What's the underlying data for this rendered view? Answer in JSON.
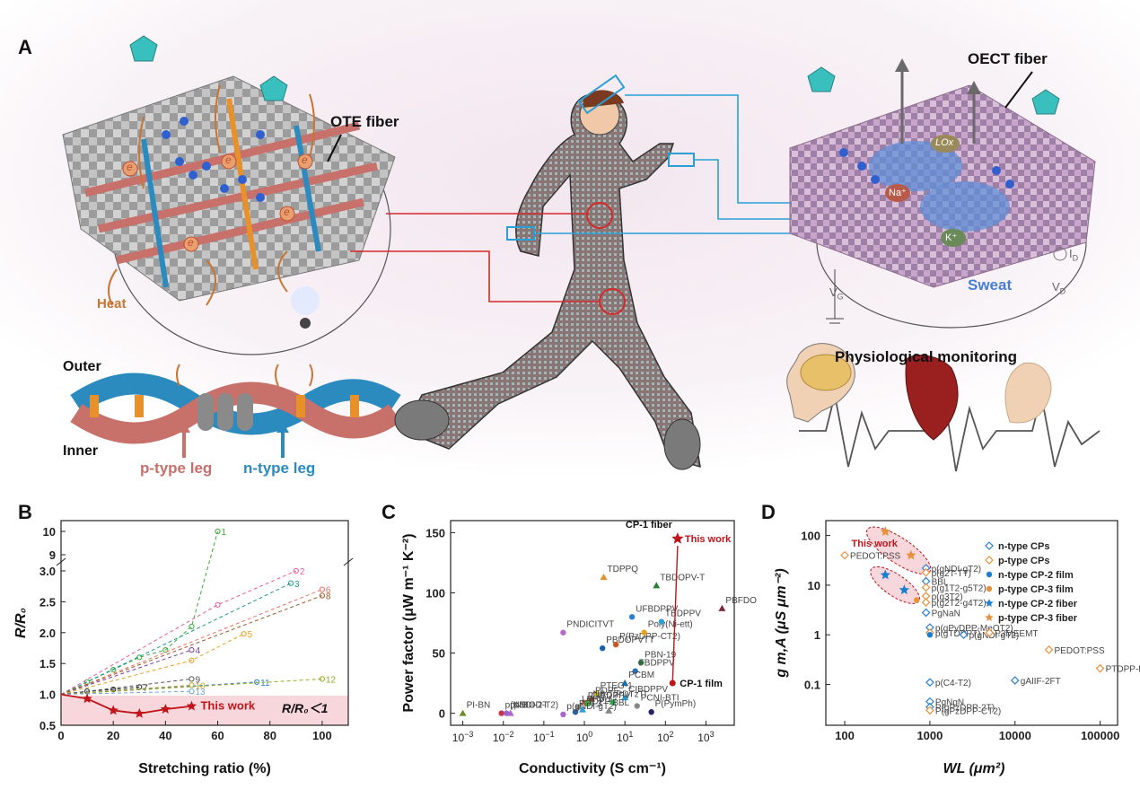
{
  "panels": {
    "a": "A",
    "b": "B",
    "c": "C",
    "d": "D"
  },
  "panel_a": {
    "ote_fiber": "OTE fiber",
    "oect_fiber": "OECT fiber",
    "heat": "Heat",
    "outer": "Outer",
    "inner": "Inner",
    "p_leg": "p-type leg",
    "n_leg": "n-type leg",
    "physio": "Physiological monitoring",
    "sweat": "Sweat",
    "lox": "LOx",
    "na": "Na⁺",
    "k": "K⁺",
    "e": "e",
    "id": "I",
    "id_sub": "D",
    "vg": "V",
    "vg_sub": "G",
    "vd": "V",
    "vd_sub": "D",
    "colors": {
      "p_leg": "#c8706a",
      "n_leg": "#2b8bbf",
      "heat": "#c87533",
      "blue_line": "#2a9fd6",
      "red_line": "#d42a2a"
    }
  },
  "chart_data": [
    {
      "type": "line",
      "panel": "B",
      "xlabel": "Stretching ratio (%)",
      "ylabel": "R/R₀",
      "xlim": [
        0,
        110
      ],
      "x_ticks": [
        "0",
        "20",
        "40",
        "60",
        "80",
        "100"
      ],
      "y_ticks_lower": [
        "0.5",
        "1.0",
        "1.5",
        "2.0",
        "2.5",
        "3.0"
      ],
      "y_ticks_upper": [
        "9",
        "10"
      ],
      "axis_break": [
        3.0,
        9.0
      ],
      "shaded_region": {
        "label": "R/R₀＜1",
        "ylim": [
          0.5,
          1.0
        ]
      },
      "series": [
        {
          "name": "1",
          "x": [
            0,
            10,
            20,
            30,
            40,
            50,
            60
          ],
          "y": [
            1.0,
            1.2,
            1.4,
            1.6,
            1.72,
            2.1,
            10.0
          ],
          "color": "#3aaa35"
        },
        {
          "name": "2",
          "x": [
            0,
            60,
            90
          ],
          "y": [
            1.0,
            2.45,
            3.0
          ],
          "color": "#e85d9a"
        },
        {
          "name": "3",
          "x": [
            0,
            88
          ],
          "y": [
            1.0,
            2.8
          ],
          "color": "#1a9a8a"
        },
        {
          "name": "4",
          "x": [
            0,
            50
          ],
          "y": [
            1.0,
            1.72
          ],
          "color": "#7b3fa0"
        },
        {
          "name": "5",
          "x": [
            0,
            50,
            70
          ],
          "y": [
            1.0,
            1.55,
            1.98
          ],
          "color": "#e8a020"
        },
        {
          "name": "6",
          "x": [
            0,
            100
          ],
          "y": [
            1.0,
            2.7
          ],
          "color": "#f07060"
        },
        {
          "name": "7",
          "x": [
            0,
            10,
            20,
            30
          ],
          "y": [
            1.0,
            1.05,
            1.08,
            1.12
          ],
          "color": "#222222"
        },
        {
          "name": "8",
          "x": [
            0,
            100
          ],
          "y": [
            1.0,
            2.6
          ],
          "color": "#9a5a2a"
        },
        {
          "name": "9",
          "x": [
            0,
            50
          ],
          "y": [
            1.0,
            1.25
          ],
          "color": "#555555"
        },
        {
          "name": "10",
          "x": [
            0,
            50
          ],
          "y": [
            1.0,
            1.15
          ],
          "color": "#d0a020"
        },
        {
          "name": "11",
          "x": [
            0,
            75
          ],
          "y": [
            1.0,
            1.2
          ],
          "color": "#2a7fd0"
        },
        {
          "name": "12",
          "x": [
            0,
            100
          ],
          "y": [
            1.0,
            1.25
          ],
          "color": "#9aaa20"
        },
        {
          "name": "13",
          "x": [
            0,
            50
          ],
          "y": [
            1.0,
            1.05
          ],
          "color": "#6fa8dc"
        },
        {
          "name": "This work",
          "x": [
            0,
            10,
            20,
            30,
            40,
            50
          ],
          "y": [
            1.0,
            0.93,
            0.74,
            0.69,
            0.76,
            0.81
          ],
          "color": "#c0151a"
        }
      ]
    },
    {
      "type": "scatter",
      "panel": "C",
      "xlabel": "Conductivity (S cm⁻¹)",
      "ylabel": "Power factor (μW m⁻¹ K⁻²)",
      "xscale": "log",
      "xlim": [
        0.0005,
        5000
      ],
      "ylim": [
        -10,
        160
      ],
      "x_ticks": [
        "10-3",
        "10-2",
        "10-1",
        "100",
        "101",
        "102",
        "103"
      ],
      "y_ticks": [
        "0",
        "50",
        "100",
        "150"
      ],
      "points": [
        {
          "label": "PI-BN",
          "x": 0.001,
          "y": 0,
          "color": "#6b8e23"
        },
        {
          "label": "p(NDIOD-T2)",
          "x": 0.009,
          "y": 0,
          "color": "#cc3344"
        },
        {
          "label": "pNB",
          "x": 0.012,
          "y": 0,
          "color": "#9966cc"
        },
        {
          "label": "pNDI-2T",
          "x": 0.015,
          "y": 0,
          "color": "#aa66cc"
        },
        {
          "label": "PNDICITVT",
          "x": 0.3,
          "y": 67,
          "color": "#b36bc9"
        },
        {
          "label": "PBDOPVTT",
          "x": 2.8,
          "y": 54,
          "color": "#1a5faa"
        },
        {
          "label": "TDPPQ",
          "x": 3,
          "y": 113,
          "color": "#e8912a"
        },
        {
          "label": "P(PzDPP-CT2)",
          "x": 6,
          "y": 57,
          "color": "#cc5522"
        },
        {
          "label": "UFBDPPV",
          "x": 15,
          "y": 80,
          "color": "#2a7fd0"
        },
        {
          "label": "TBDOPV-T",
          "x": 60,
          "y": 106,
          "color": "#2e7d32"
        },
        {
          "label": "Poly(Ni-ett)",
          "x": 30,
          "y": 67,
          "color": "#e8a020"
        },
        {
          "label": "TBDPPV",
          "x": 80,
          "y": 76,
          "color": "#2a9fd6"
        },
        {
          "label": "PBFDO",
          "x": 2500,
          "y": 87,
          "color": "#7a2a3a"
        },
        {
          "label": "PBN-19",
          "x": 25,
          "y": 42,
          "color": "#2a7f3a"
        },
        {
          "label": "FBDPPV",
          "x": 18,
          "y": 35,
          "color": "#2a6fb0"
        },
        {
          "label": "PCBM",
          "x": 10,
          "y": 25,
          "color": "#1a6fb0"
        },
        {
          "label": "PTEG-1",
          "x": 2,
          "y": 16,
          "color": "#e6d020"
        },
        {
          "label": "pNB-Tz",
          "x": 1,
          "y": 9,
          "color": "#f07060"
        },
        {
          "label": "PDPF",
          "x": 1.5,
          "y": 12,
          "color": "#8b4513"
        },
        {
          "label": "LPPV-1",
          "x": 0.7,
          "y": 5,
          "color": "#888888"
        },
        {
          "label": "PDI-3",
          "x": 0.6,
          "y": 1,
          "color": "#2a5fa0"
        },
        {
          "label": "BDPPV",
          "x": 0.9,
          "y": 3,
          "color": "#2a9fd6"
        },
        {
          "label": "CIBDPPV",
          "x": 1.2,
          "y": 8,
          "color": "#3aaa35"
        },
        {
          "label": "p(gNDI-gT2)",
          "x": 0.3,
          "y": -1,
          "color": "#aa66cc"
        },
        {
          "label": "CIBDPPV",
          "x": 10,
          "y": 13,
          "color": "#2a9fd6"
        },
        {
          "label": "PDTzTI",
          "x": 5,
          "y": 9,
          "color": "#2eaa4a"
        },
        {
          "label": "PCNI-BTI",
          "x": 20,
          "y": 6,
          "color": "#888888"
        },
        {
          "label": "BBL",
          "x": 4,
          "y": 2,
          "color": "#888888"
        },
        {
          "label": "P(PymPh)",
          "x": 45,
          "y": 1,
          "color": "#222266"
        },
        {
          "label": "CP-1 film",
          "x": 150,
          "y": 25,
          "color": "#c0151a",
          "marker": "dot"
        },
        {
          "label": "This work",
          "x": 200,
          "y": 145,
          "color": "#c0151a",
          "marker": "star"
        }
      ],
      "annotations": [
        "CP-1 fiber",
        "This work",
        "CP-1 film"
      ]
    },
    {
      "type": "scatter",
      "panel": "D",
      "xlabel": "WL (μm²)",
      "ylabel": "g m,A (μS μm⁻²)",
      "xscale": "log",
      "yscale": "log",
      "xlim": [
        60,
        160000
      ],
      "ylim": [
        0.015,
        200
      ],
      "x_ticks": [
        "100",
        "1000",
        "10000",
        "100000"
      ],
      "y_ticks": [
        "0.1",
        "1",
        "10",
        "100"
      ],
      "legend": [
        {
          "name": "n-type CPs",
          "color": "#2a7fd0",
          "marker": "open-diamond"
        },
        {
          "name": "p-type CPs",
          "color": "#e8913a",
          "marker": "open-diamond"
        },
        {
          "name": "n-type CP-2 film",
          "color": "#1a7fd0",
          "marker": "dot"
        },
        {
          "name": "p-type CP-3 film",
          "color": "#e8913a",
          "marker": "dot"
        },
        {
          "name": "n-type CP-2 fiber",
          "color": "#1a7fd0",
          "marker": "star"
        },
        {
          "name": "p-type CP-3 fiber",
          "color": "#e8913a",
          "marker": "star"
        }
      ],
      "points": [
        {
          "label": "PEDOT:PSS",
          "x": 100,
          "y": 40,
          "color": "#e8913a"
        },
        {
          "label": "p(gNDI-gT2)",
          "x": 900,
          "y": 22,
          "color": "#2a7fd0"
        },
        {
          "label": "p(g2T-TT)",
          "x": 900,
          "y": 18,
          "color": "#e8913a"
        },
        {
          "label": "BBL",
          "x": 900,
          "y": 12,
          "color": "#2a7fd0"
        },
        {
          "label": "p(g1T2-g5T2)",
          "x": 900,
          "y": 9,
          "color": "#e8913a"
        },
        {
          "label": "p(g3T2)",
          "x": 900,
          "y": 6,
          "color": "#e8913a"
        },
        {
          "label": "p(g2T2-g4T2)",
          "x": 900,
          "y": 4.5,
          "color": "#e8913a"
        },
        {
          "label": "PgNaN",
          "x": 900,
          "y": 2.8,
          "color": "#2a7fd0"
        },
        {
          "label": "p(gPyDPP-MeOT2)",
          "x": 1000,
          "y": 1.4,
          "color": "#2a7fd0"
        },
        {
          "label": "p(gTDPPT)",
          "x": 1000,
          "y": 1.1,
          "color": "#e8913a"
        },
        {
          "label": "p(gNDI-gT2)",
          "x": 2500,
          "y": 1.0,
          "color": "#2a7fd0"
        },
        {
          "label": "P3MEEMT",
          "x": 5000,
          "y": 1.1,
          "color": "#e8913a"
        },
        {
          "label": "gAIIF-2FT",
          "x": 10000,
          "y": 0.12,
          "color": "#2a7fd0"
        },
        {
          "label": "PEDOT:PSS",
          "x": 25000,
          "y": 0.5,
          "color": "#e8913a"
        },
        {
          "label": "PTDPP-DT",
          "x": 100000,
          "y": 0.21,
          "color": "#e8913a"
        },
        {
          "label": "p(C4-T2)",
          "x": 1000,
          "y": 0.11,
          "color": "#2a7fd0"
        },
        {
          "label": "PgNgN",
          "x": 1000,
          "y": 0.045,
          "color": "#2a7fd0"
        },
        {
          "label": "P(gPzDPP-2T)",
          "x": 1000,
          "y": 0.035,
          "color": "#2a7fd0"
        },
        {
          "label": "P(gPzDPP-CT2)",
          "x": 1000,
          "y": 0.03,
          "color": "#e8913a"
        },
        {
          "label": "n-type CP-2 film",
          "x": 1000,
          "y": 1.0,
          "color": "#1a7fd0",
          "marker": "dot"
        },
        {
          "label": "p-type CP-3 film",
          "x": 700,
          "y": 5,
          "color": "#e8913a",
          "marker": "dot"
        },
        {
          "label": "n-type CP-2 fiber",
          "x": 500,
          "y": 8,
          "color": "#1a7fd0",
          "marker": "star"
        },
        {
          "label": "n-type CP-2 fiber",
          "x": 300,
          "y": 16,
          "color": "#1a7fd0",
          "marker": "star"
        },
        {
          "label": "p-type CP-3 fiber",
          "x": 300,
          "y": 120,
          "color": "#e8913a",
          "marker": "star"
        },
        {
          "label": "p-type CP-3 fiber",
          "x": 600,
          "y": 40,
          "color": "#e8913a",
          "marker": "star"
        }
      ],
      "annotation": "This work"
    }
  ]
}
